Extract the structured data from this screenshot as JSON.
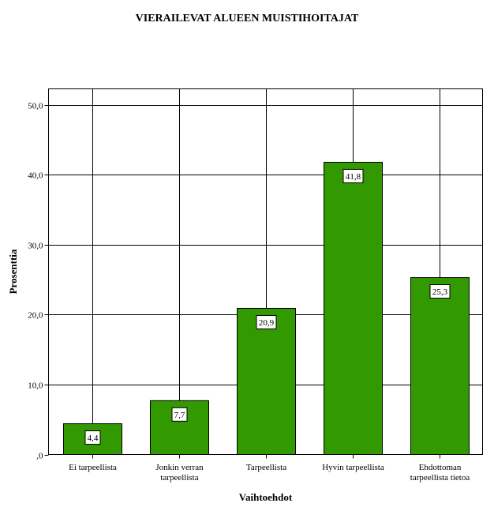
{
  "chart_data": {
    "type": "bar",
    "title": "VIERAILEVAT ALUEEN MUISTIHOITAJAT",
    "xlabel": "Vaihtoehdot",
    "ylabel": "Prosenttia",
    "categories": [
      [
        "Ei tarpeellista"
      ],
      [
        "Jonkin verran",
        "tarpeellista"
      ],
      [
        "Tarpeellista"
      ],
      [
        "Hyvin tarpeellista"
      ],
      [
        "Ehdottoman",
        "tarpeellista tietoa"
      ]
    ],
    "values": [
      4.4,
      7.7,
      20.9,
      41.8,
      25.3
    ],
    "value_labels": [
      "4,4",
      "7,7",
      "20,9",
      "41,8",
      "25,3"
    ],
    "yticks": [
      0,
      10,
      20,
      30,
      40,
      50
    ],
    "ytick_labels": [
      ",0",
      "10,0",
      "20,0",
      "30,0",
      "40,0",
      "50,0"
    ],
    "ylim": [
      0,
      52.3
    ],
    "grid": true,
    "bar_color": "#339900"
  }
}
